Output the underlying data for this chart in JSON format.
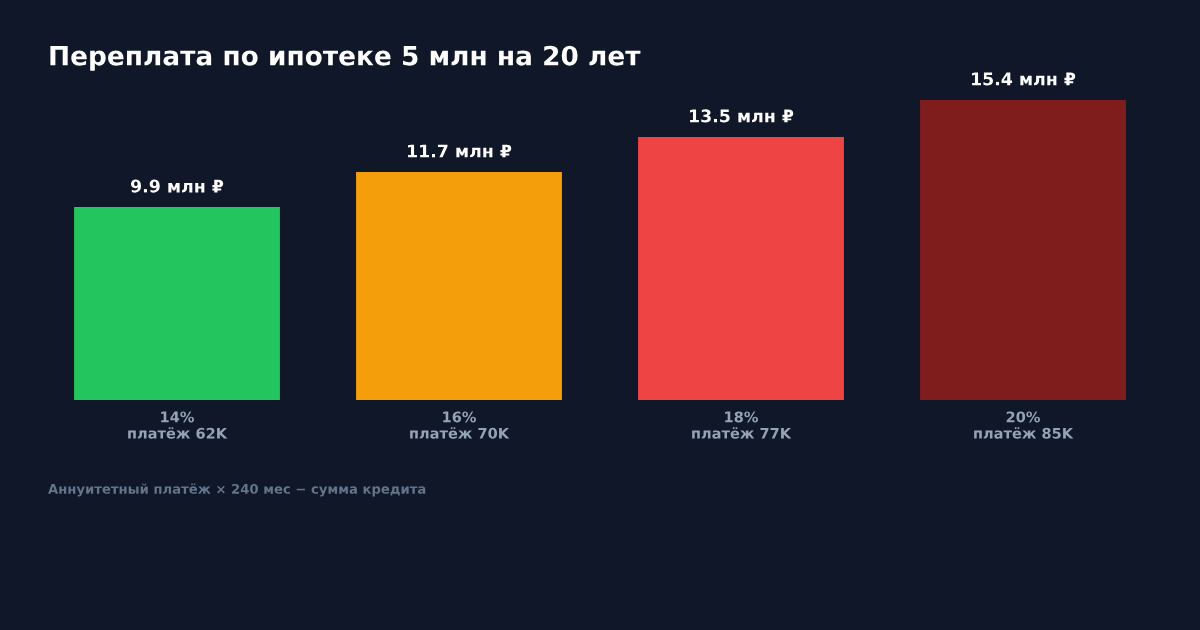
{
  "chart_data": {
    "type": "bar",
    "title": "Переплата по ипотеке 5 млн на 20 лет",
    "categories": [
      "14%\nплатёж 62K",
      "16%\nплатёж 70K",
      "18%\nплатёж 77K",
      "20%\nплатёж 85K"
    ],
    "values": [
      9.9,
      11.7,
      13.5,
      15.4
    ],
    "colors": [
      "#22c55e",
      "#f59e0b",
      "#ef4444",
      "#7f1d1d"
    ],
    "value_labels": [
      "9.9 млн ₽",
      "11.7 млн ₽",
      "13.5 млн ₽",
      "15.4 млн ₽"
    ],
    "annotations": [
      "Аннуитетный платёж × 240 мес − сумма кредита"
    ]
  }
}
